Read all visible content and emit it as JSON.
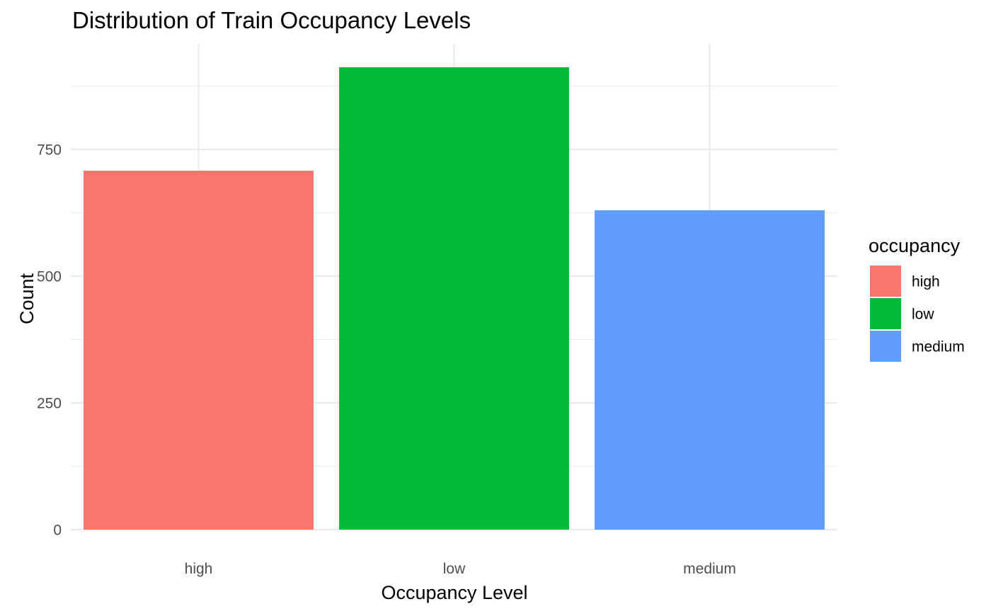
{
  "chart_data": {
    "type": "bar",
    "title": "Distribution of Train Occupancy Levels",
    "xlabel": "Occupancy Level",
    "ylabel": "Count",
    "categories": [
      "high",
      "low",
      "medium"
    ],
    "values": [
      708,
      912,
      630
    ],
    "colors": [
      "#F8766D",
      "#00BA38",
      "#619CFF"
    ],
    "ylim": [
      0,
      950
    ],
    "yticks": [
      0,
      250,
      500,
      750
    ],
    "grid": true,
    "legend": {
      "title": "occupancy",
      "placement": "right",
      "entries": [
        "high",
        "low",
        "medium"
      ]
    }
  }
}
